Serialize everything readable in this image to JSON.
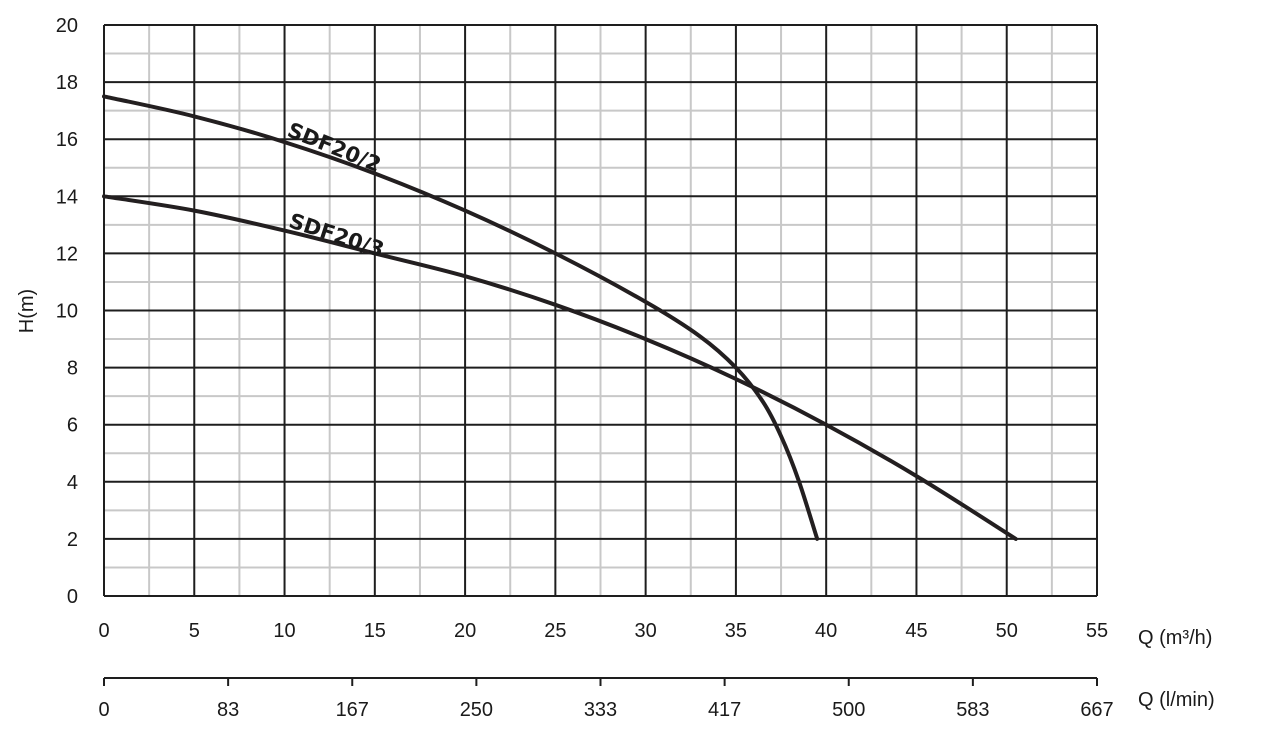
{
  "chart_data": {
    "type": "line",
    "ylabel": "H(m)",
    "xlabel": "Q (m³/h)",
    "xlabel_secondary": "Q (l/min)",
    "xlim": [
      0,
      55
    ],
    "ylim": [
      0,
      20
    ],
    "x_ticks": [
      "0",
      "5",
      "10",
      "15",
      "20",
      "25",
      "30",
      "35",
      "40",
      "45",
      "50",
      "55"
    ],
    "y_ticks": [
      "0",
      "2",
      "4",
      "6",
      "8",
      "10",
      "12",
      "14",
      "16",
      "18",
      "20"
    ],
    "x2_ticks": [
      "0",
      "83",
      "167",
      "250",
      "333",
      "417",
      "500",
      "583",
      "667"
    ],
    "grid": true,
    "series": [
      {
        "name": "SDF20/2",
        "x": [
          0,
          5,
          10,
          15,
          20,
          25,
          30,
          33,
          35,
          36.5,
          37.5,
          38.5,
          39.5
        ],
        "y": [
          17.5,
          16.8,
          15.9,
          14.8,
          13.5,
          12.0,
          10.3,
          9.1,
          8.0,
          6.8,
          5.6,
          4.0,
          2.0
        ]
      },
      {
        "name": "SDF20/3",
        "x": [
          0,
          5,
          10,
          15,
          20,
          25,
          30,
          35,
          40,
          45,
          50.5
        ],
        "y": [
          14.0,
          13.5,
          12.8,
          12.0,
          11.2,
          10.2,
          9.0,
          7.6,
          6.0,
          4.2,
          2.0
        ]
      }
    ]
  }
}
